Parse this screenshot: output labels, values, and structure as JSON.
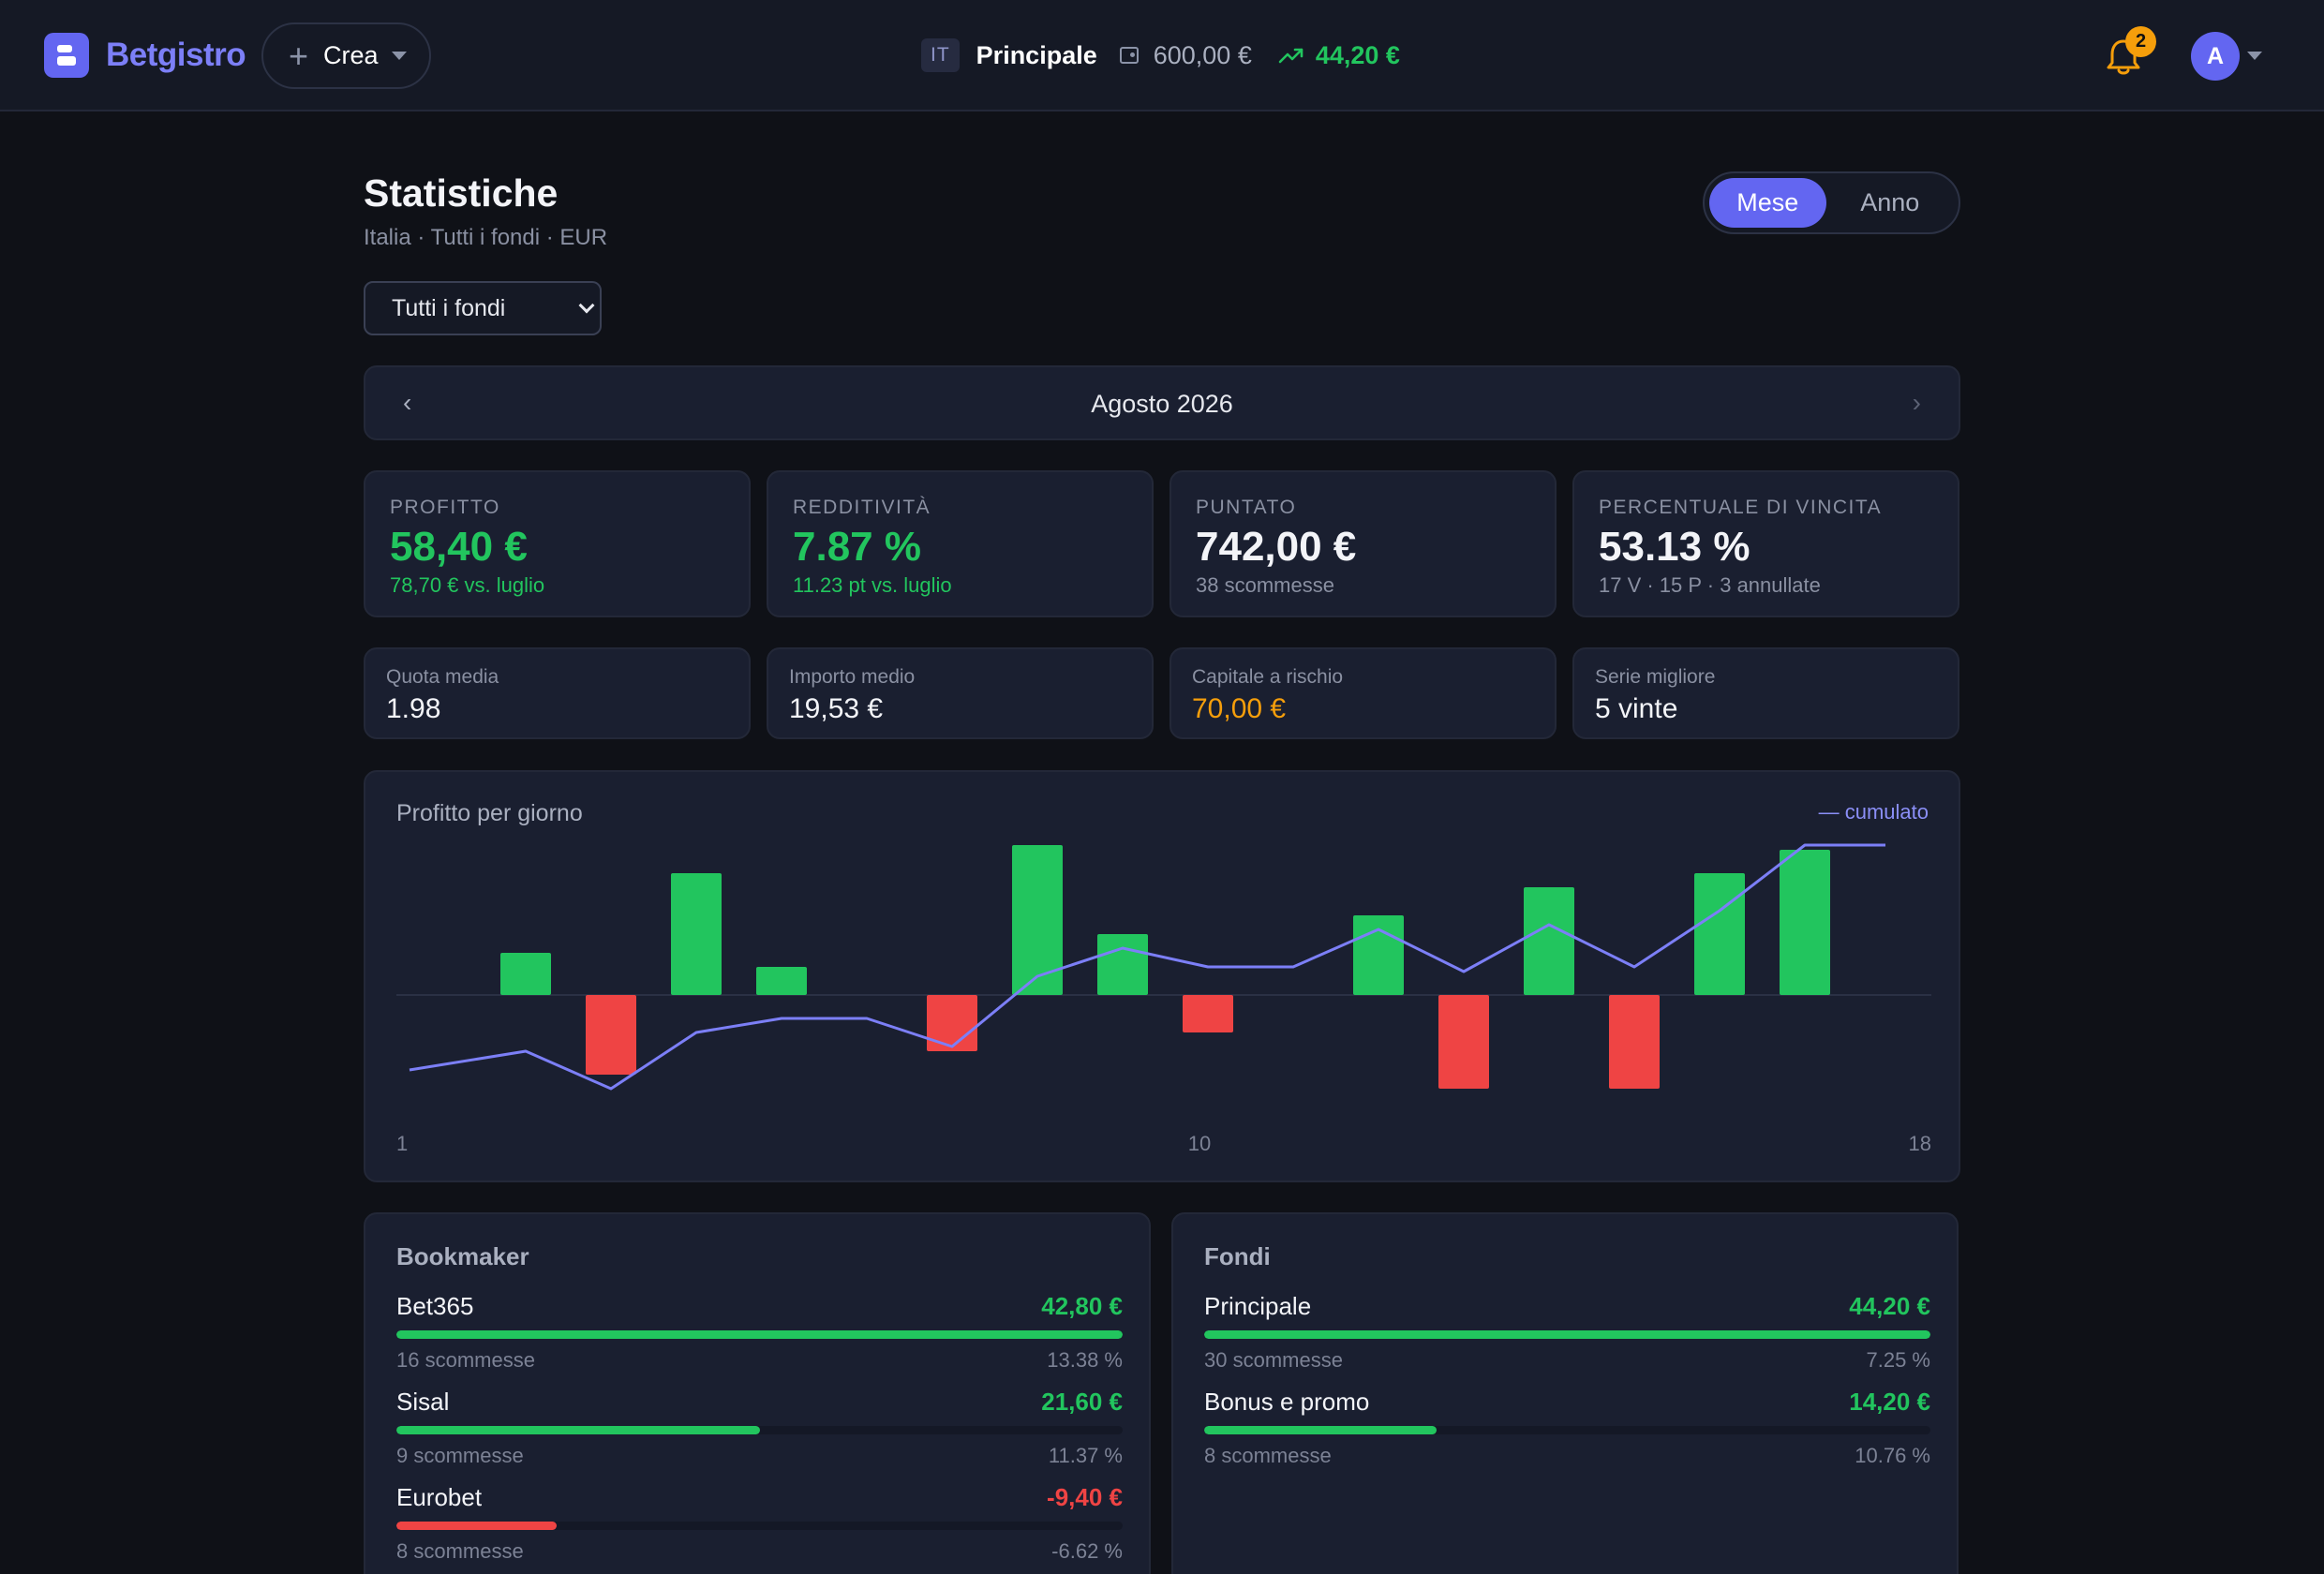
{
  "header": {
    "brand": "Betgistro",
    "create_label": "Crea",
    "country_code": "IT",
    "fund_name": "Principale",
    "balance": "600,00 €",
    "profit": "44,20 €",
    "notifications_count": "2",
    "avatar_initial": "A",
    "icons": [
      "logo-icon",
      "plus-icon",
      "wallet-icon",
      "trend-up-icon",
      "bell-icon",
      "chevron-down-icon"
    ]
  },
  "page": {
    "title": "Statistiche",
    "subtitle": "Italia · Tutti i fondi · EUR",
    "period_toggle": {
      "active": "Mese",
      "inactive": "Anno"
    },
    "fund_select": {
      "value": "Tutti i fondi"
    },
    "month_nav": {
      "label": "Agosto 2026",
      "prev": "‹",
      "next": "›"
    }
  },
  "kpis": [
    {
      "label": "Profitto",
      "value": "58,40 €",
      "sub": "78,70 € vs. luglio"
    },
    {
      "label": "Redditività",
      "value": "7.87 %",
      "sub": "11.23 pt vs. luglio"
    },
    {
      "label": "Puntato",
      "value": "742,00 €",
      "sub": "38 scommesse"
    },
    {
      "label": "Percentuale di vincita",
      "value": "53.13 %",
      "sub": "17 V · 15 P · 3 annullate"
    }
  ],
  "mini_stats": [
    {
      "label": "Quota media",
      "value": "1.98"
    },
    {
      "label": "Importo medio",
      "value": "19,53 €"
    },
    {
      "label": "Capitale a rischio",
      "value": "70,00 €"
    },
    {
      "label": "Serie migliore",
      "value": "5 vinte"
    }
  ],
  "chart": {
    "title": "Profitto per giorno",
    "legend": "— cumulato",
    "x_tick_labels": [
      "1",
      "10",
      "18"
    ]
  },
  "chart_data": {
    "type": "bar",
    "x": [
      1,
      2,
      3,
      4,
      5,
      6,
      7,
      8,
      9,
      10,
      11,
      12,
      13,
      14,
      15,
      16,
      17,
      18
    ],
    "series": [
      {
        "type": "bar",
        "values": [
          0,
          9,
          -17,
          26,
          6,
          0,
          -12,
          32,
          13,
          -8,
          0,
          17,
          -20,
          23,
          -20,
          26,
          31,
          0
        ]
      },
      {
        "type": "line",
        "name": "cumulato",
        "values": [
          -16,
          -12,
          -20,
          -8,
          -5,
          -5,
          -11,
          4,
          10,
          6,
          6,
          14,
          5,
          15,
          6,
          18,
          32,
          32
        ]
      }
    ],
    "xlabel": "",
    "ylabel": "",
    "ylim": [
      -33,
      33
    ],
    "grid": false,
    "legend": "top-right",
    "colors": {
      "positive": "#22c55e",
      "negative": "#ef4444",
      "line": "#7c7ff7"
    }
  },
  "bookmakers": {
    "title": "Bookmaker",
    "items": [
      {
        "name": "Bet365",
        "amount": "42,80 €",
        "count": "16 scommesse",
        "pct": "13.38 %",
        "fill": 1.0,
        "positive": true
      },
      {
        "name": "Sisal",
        "amount": "21,60 €",
        "count": "9 scommesse",
        "pct": "11.37 %",
        "fill": 0.5,
        "positive": true
      },
      {
        "name": "Eurobet",
        "amount": "-9,40 €",
        "count": "8 scommesse",
        "pct": "-6.62 %",
        "fill": 0.22,
        "positive": false
      }
    ]
  },
  "funds": {
    "title": "Fondi",
    "items": [
      {
        "name": "Principale",
        "amount": "44,20 €",
        "count": "30 scommesse",
        "pct": "7.25 %",
        "fill": 1.0,
        "positive": true
      },
      {
        "name": "Bonus e promo",
        "amount": "14,20 €",
        "count": "8 scommesse",
        "pct": "10.76 %",
        "fill": 0.32,
        "positive": true
      }
    ]
  }
}
